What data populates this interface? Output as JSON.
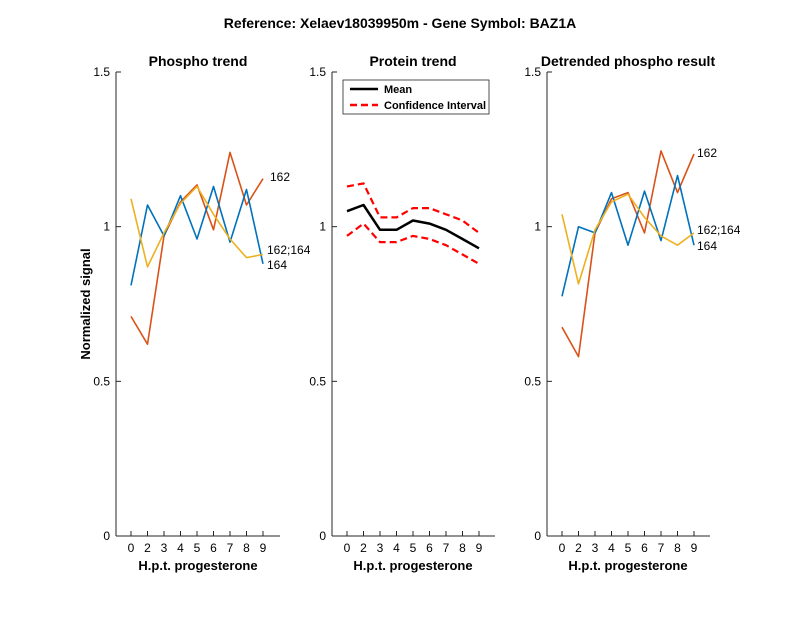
{
  "figure": {
    "title": "Reference:  Xelaev18039950m - Gene Symbol:  BAZ1A",
    "ylabel": "Normalized signal"
  },
  "colors": {
    "162": "#D95319",
    "164": "#0072BD",
    "162;164": "#EDB120",
    "mean": "#000000",
    "ci": "#FF0000"
  },
  "chart_data": [
    {
      "type": "line",
      "title": "Phospho trend",
      "xlabel": "H.p.t. progesterone",
      "ylabel": "Normalized signal",
      "x": [
        0,
        2,
        3,
        4,
        5,
        6,
        7,
        8,
        9
      ],
      "xlim": [
        0,
        9
      ],
      "ylim": [
        0,
        1.5
      ],
      "yticks": [
        "0",
        "0.5",
        "1",
        "1.5"
      ],
      "series": [
        {
          "name": "162",
          "values": [
            0.71,
            0.62,
            0.97,
            1.08,
            1.135,
            0.99,
            1.24,
            1.07,
            1.155
          ]
        },
        {
          "name": "164",
          "values": [
            0.81,
            1.07,
            0.97,
            1.1,
            0.96,
            1.13,
            0.95,
            1.12,
            0.88
          ]
        },
        {
          "name": "162;164",
          "values": [
            1.09,
            0.87,
            0.98,
            1.075,
            1.13,
            1.04,
            0.96,
            0.9,
            0.91
          ]
        }
      ],
      "labels": [
        "162",
        "162;164",
        "164"
      ]
    },
    {
      "type": "line",
      "title": "Protein trend",
      "xlabel": "H.p.t. progesterone",
      "x": [
        0,
        2,
        3,
        4,
        5,
        6,
        7,
        8,
        9
      ],
      "xlim": [
        0,
        9
      ],
      "ylim": [
        0,
        1.5
      ],
      "yticks": [
        "0",
        "0.5",
        "1",
        "1.5"
      ],
      "legend": "top-left",
      "series": [
        {
          "name": "Mean",
          "values": [
            1.05,
            1.07,
            0.99,
            0.99,
            1.02,
            1.01,
            0.99,
            0.96,
            0.93
          ]
        },
        {
          "name": "Confidence Interval",
          "values": [
            1.13,
            1.14,
            1.03,
            1.03,
            1.06,
            1.06,
            1.04,
            1.02,
            0.98
          ]
        },
        {
          "name": "Confidence Interval",
          "values": [
            0.97,
            1.01,
            0.95,
            0.95,
            0.97,
            0.96,
            0.94,
            0.91,
            0.88
          ]
        }
      ]
    },
    {
      "type": "line",
      "title": "Detrended phospho result",
      "xlabel": "H.p.t. progesterone",
      "x": [
        0,
        2,
        3,
        4,
        5,
        6,
        7,
        8,
        9
      ],
      "xlim": [
        0,
        9
      ],
      "ylim": [
        0,
        1.5
      ],
      "yticks": [
        "0",
        "0.5",
        "1",
        "1.5"
      ],
      "series": [
        {
          "name": "162",
          "values": [
            0.675,
            0.58,
            0.98,
            1.09,
            1.11,
            0.98,
            1.245,
            1.11,
            1.235
          ]
        },
        {
          "name": "164",
          "values": [
            0.775,
            1.0,
            0.98,
            1.11,
            0.94,
            1.115,
            0.955,
            1.165,
            0.94
          ]
        },
        {
          "name": "162;164",
          "values": [
            1.04,
            0.815,
            0.99,
            1.08,
            1.105,
            1.03,
            0.97,
            0.94,
            0.98
          ]
        }
      ],
      "labels": [
        "162",
        "162;164",
        "164"
      ]
    }
  ]
}
